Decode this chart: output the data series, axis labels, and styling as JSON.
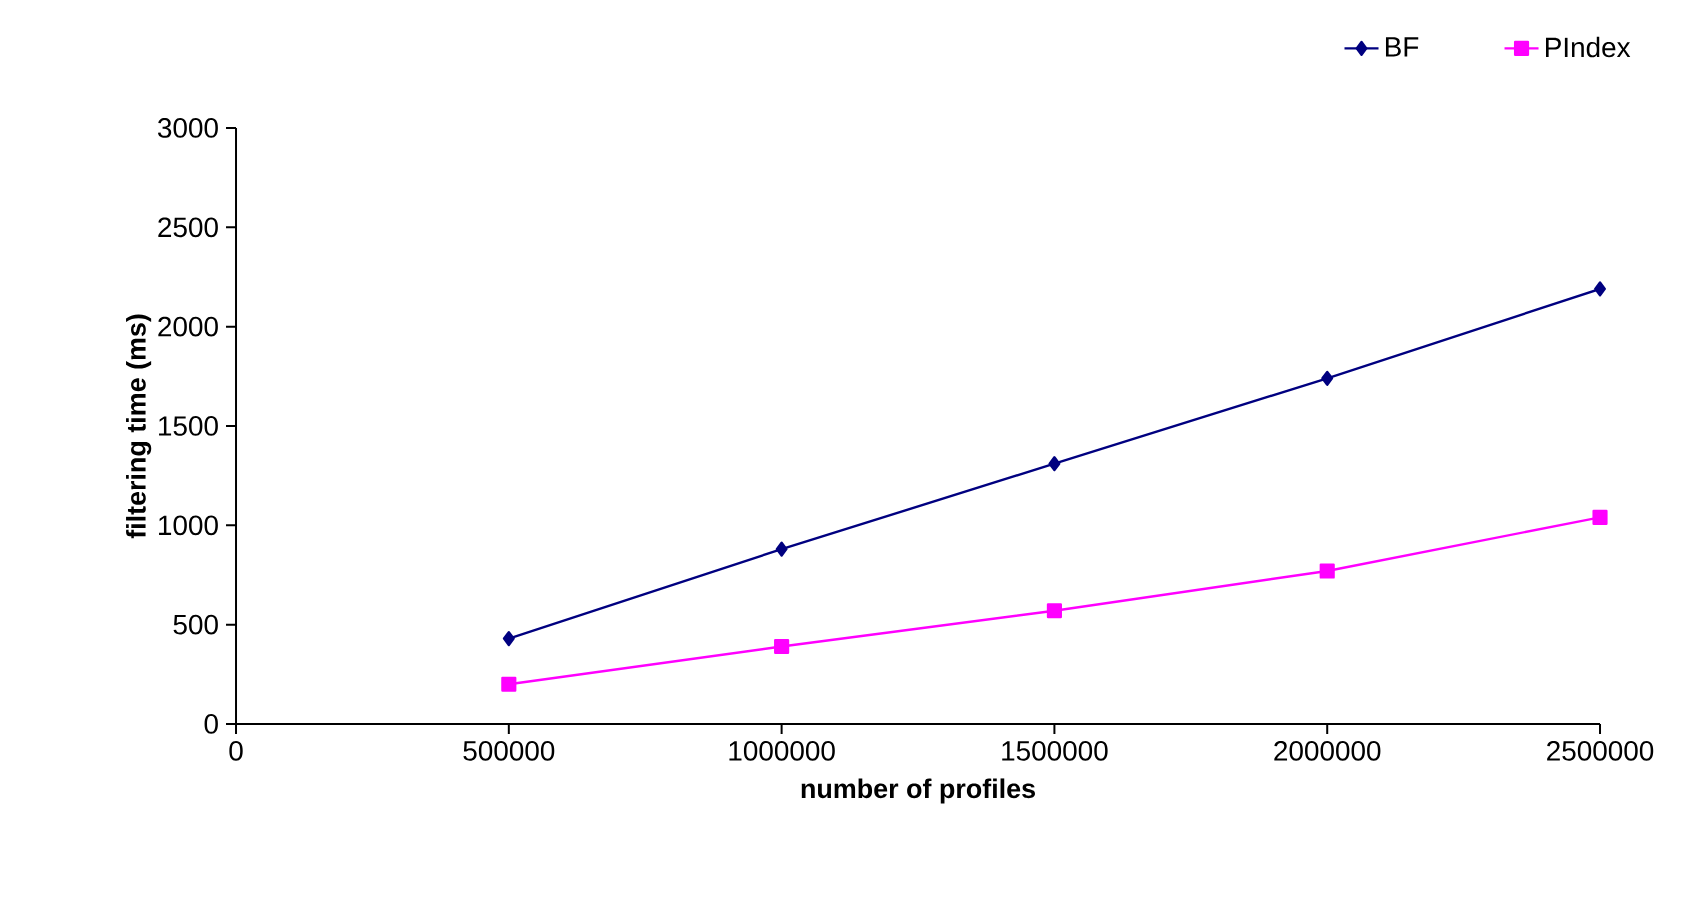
{
  "chart_data": {
    "type": "line",
    "xlabel": "number of profiles",
    "ylabel": "filtering time (ms)",
    "x": [
      500000,
      1000000,
      1500000,
      2000000,
      2500000
    ],
    "series": [
      {
        "name": "BF",
        "color": "#000080",
        "marker": "diamond",
        "values": [
          430,
          880,
          1310,
          1740,
          2190
        ]
      },
      {
        "name": "PIndex",
        "color": "#ff00ff",
        "marker": "square",
        "values": [
          200,
          390,
          570,
          770,
          1040
        ]
      }
    ],
    "xlim": [
      0,
      2500000
    ],
    "xticks": [
      0,
      500000,
      1000000,
      1500000,
      2000000,
      2500000
    ],
    "ylim": [
      0,
      3000
    ],
    "yticks": [
      0,
      500,
      1000,
      1500,
      2000,
      2500,
      3000
    ],
    "grid": false,
    "legend": "top right"
  }
}
